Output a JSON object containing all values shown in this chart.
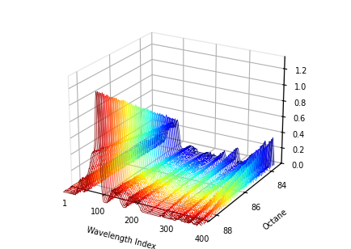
{
  "xlabel": "Wavelength Index",
  "ylabel": "Octane",
  "xlim": [
    1,
    401
  ],
  "ylim_front": 88.5,
  "ylim_back": 83.2,
  "zlim": [
    0,
    1.35
  ],
  "xticks": [
    1,
    100,
    200,
    300,
    400
  ],
  "yticks": [
    84,
    86,
    88
  ],
  "zticks": [
    0,
    0.2,
    0.4,
    0.6,
    0.8,
    1.0,
    1.2
  ],
  "n_wavelengths": 401,
  "n_samples": 60,
  "octane_min": 83.8,
  "octane_max": 89.0,
  "figsize": [
    4.34,
    3.08
  ],
  "dpi": 100,
  "elev": 22,
  "azim": -60
}
